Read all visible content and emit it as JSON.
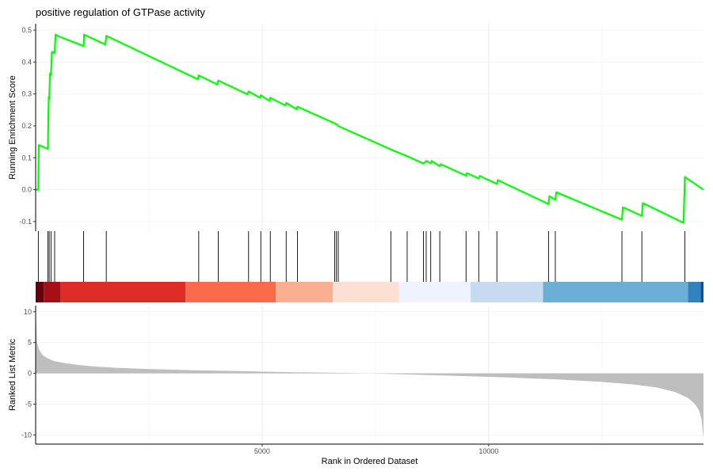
{
  "chart_data": {
    "type": "line",
    "title": "positive regulation of GTPase activity",
    "xlabel": "Rank in Ordered Dataset",
    "x_range": [
      1,
      14740
    ],
    "x_ticks": [
      5000,
      10000
    ],
    "top_panel": {
      "ylabel": "Running Enrichment Score",
      "ylim": [
        -0.13,
        0.52
      ],
      "y_ticks": [
        -0.1,
        0.0,
        0.1,
        0.2,
        0.3,
        0.4,
        0.5
      ],
      "series": [
        {
          "color": "#00ff00",
          "x": [
            1,
            60,
            70,
            270,
            290,
            300,
            320,
            340,
            360,
            420,
            440,
            520,
            1060,
            1070,
            1540,
            1560,
            3580,
            3600,
            4010,
            4030,
            4680,
            4700,
            4950,
            4970,
            5160,
            5180,
            5510,
            5530,
            5760,
            5780,
            6600,
            6640,
            6680,
            6700,
            7840,
            8200,
            8560,
            8620,
            8720,
            8740,
            8920,
            8940,
            9500,
            9520,
            9780,
            9800,
            10180,
            10200,
            11320,
            11340,
            11470,
            11490,
            12940,
            12960,
            13380,
            13400,
            14300,
            14330,
            14740
          ],
          "y": [
            0.0,
            0.0,
            0.14,
            0.128,
            0.29,
            0.285,
            0.365,
            0.36,
            0.432,
            0.428,
            0.486,
            0.48,
            0.45,
            0.486,
            0.455,
            0.482,
            0.346,
            0.358,
            0.33,
            0.342,
            0.299,
            0.308,
            0.288,
            0.296,
            0.278,
            0.288,
            0.264,
            0.272,
            0.252,
            0.26,
            0.208,
            0.205,
            0.2,
            0.198,
            0.126,
            0.105,
            0.082,
            0.09,
            0.083,
            0.09,
            0.074,
            0.08,
            0.044,
            0.052,
            0.035,
            0.043,
            0.018,
            0.03,
            -0.045,
            -0.02,
            -0.032,
            -0.008,
            -0.094,
            -0.055,
            -0.082,
            -0.042,
            -0.104,
            0.04,
            0.0
          ]
        }
      ]
    },
    "hit_positions": [
      60,
      270,
      300,
      340,
      420,
      1060,
      1560,
      3600,
      4030,
      4700,
      4970,
      5180,
      5530,
      5780,
      6600,
      6640,
      6680,
      7840,
      8200,
      8560,
      8620,
      8720,
      8920,
      9500,
      9780,
      10180,
      11320,
      11470,
      12940,
      13380,
      14330
    ],
    "color_bar": [
      {
        "from": 1,
        "to": 180,
        "color": "#67000d"
      },
      {
        "from": 180,
        "to": 550,
        "color": "#a50f15"
      },
      {
        "from": 550,
        "to": 3310,
        "color": "#de2d26"
      },
      {
        "from": 3310,
        "to": 5300,
        "color": "#fb6a4a"
      },
      {
        "from": 5300,
        "to": 6560,
        "color": "#fcae91"
      },
      {
        "from": 6560,
        "to": 8020,
        "color": "#fee0d2"
      },
      {
        "from": 8020,
        "to": 9600,
        "color": "#eff3ff"
      },
      {
        "from": 9600,
        "to": 11200,
        "color": "#c6dbef"
      },
      {
        "from": 11200,
        "to": 14400,
        "color": "#6baed6"
      },
      {
        "from": 14400,
        "to": 14680,
        "color": "#3182bd"
      },
      {
        "from": 14680,
        "to": 14740,
        "color": "#08519c"
      }
    ],
    "bottom_panel": {
      "ylabel": "Ranked List Metric",
      "ylim": [
        -11.5,
        11
      ],
      "y_ticks": [
        -10,
        -5,
        0,
        5,
        10
      ],
      "fill_color": "#bebebe",
      "x": [
        1,
        30,
        80,
        150,
        250,
        400,
        600,
        900,
        1300,
        1800,
        2500,
        3500,
        4500,
        5500,
        6500,
        7370,
        8500,
        9500,
        10500,
        11500,
        12500,
        13200,
        13700,
        14100,
        14400,
        14550,
        14640,
        14700,
        14740
      ],
      "y": [
        10.5,
        5.0,
        3.8,
        3.0,
        2.5,
        2.0,
        1.7,
        1.4,
        1.1,
        0.9,
        0.7,
        0.5,
        0.35,
        0.2,
        0.1,
        0.0,
        -0.25,
        -0.45,
        -0.7,
        -1.0,
        -1.4,
        -1.8,
        -2.3,
        -3.0,
        -4.0,
        -5.0,
        -6.0,
        -7.5,
        -10.7
      ]
    }
  }
}
